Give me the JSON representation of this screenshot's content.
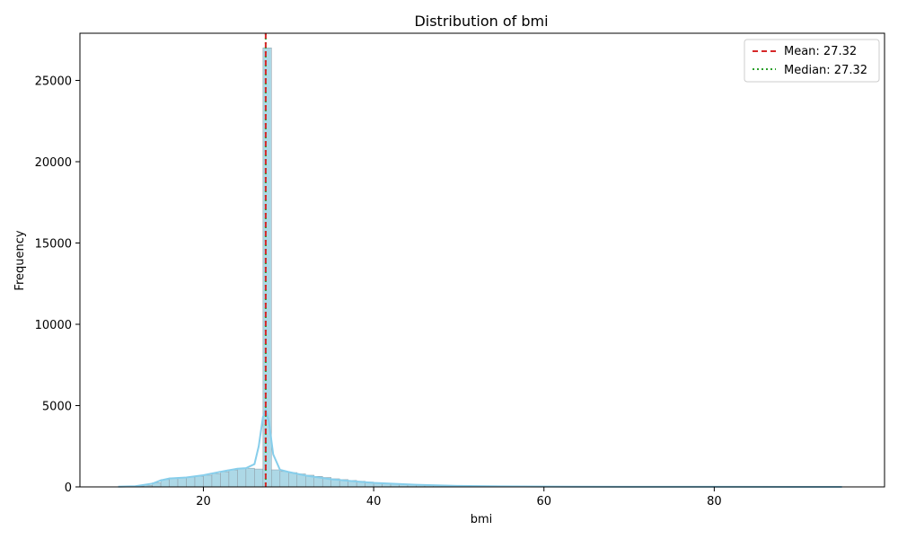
{
  "chart_data": {
    "type": "histogram",
    "title": "Distribution of bmi",
    "xlabel": "bmi",
    "ylabel": "Frequency",
    "xlim": [
      5.5,
      100
    ],
    "ylim": [
      0,
      27900
    ],
    "xticks": [
      20,
      40,
      60,
      80
    ],
    "yticks": [
      0,
      5000,
      10000,
      15000,
      20000,
      25000
    ],
    "grid": false,
    "legend_position": "top-right",
    "bar_color": "#add8e6",
    "bar_edge_color": "#8c9aa3",
    "kde_color": "#87ceeb",
    "mean": {
      "label": "Mean: 27.32",
      "value": 27.32,
      "color": "#d62728",
      "style": "dashed"
    },
    "median": {
      "label": "Median: 27.32",
      "value": 27.32,
      "color": "#2ca02c",
      "style": "dotted"
    },
    "bins": {
      "x": [
        10,
        11,
        12,
        13,
        14,
        15,
        16,
        17,
        18,
        19,
        20,
        21,
        22,
        23,
        24,
        25,
        26,
        27,
        28,
        29,
        30,
        31,
        32,
        33,
        34,
        35,
        36,
        37,
        38,
        39,
        40,
        41,
        42,
        43,
        44,
        45,
        46,
        47,
        48,
        50,
        52,
        55,
        60,
        70,
        80,
        95
      ],
      "values": [
        20,
        30,
        50,
        100,
        250,
        450,
        550,
        580,
        600,
        650,
        720,
        820,
        930,
        1040,
        1120,
        1150,
        1100,
        27000,
        1050,
        950,
        880,
        800,
        720,
        650,
        580,
        500,
        450,
        400,
        350,
        300,
        250,
        220,
        190,
        160,
        140,
        120,
        100,
        80,
        70,
        50,
        40,
        30,
        20,
        10,
        5,
        2
      ]
    },
    "kde": {
      "x": [
        10,
        12,
        14,
        15,
        16,
        18,
        20,
        22,
        24,
        25,
        26,
        26.5,
        27,
        27.32,
        27.7,
        28.2,
        29,
        30,
        32,
        35,
        38,
        40,
        45,
        50,
        55,
        60,
        70,
        80,
        95
      ],
      "y": [
        15,
        40,
        200,
        400,
        520,
        580,
        720,
        930,
        1120,
        1150,
        1400,
        2500,
        4300,
        4750,
        4000,
        2000,
        1050,
        920,
        700,
        470,
        330,
        250,
        130,
        60,
        35,
        20,
        10,
        5,
        2
      ]
    }
  }
}
